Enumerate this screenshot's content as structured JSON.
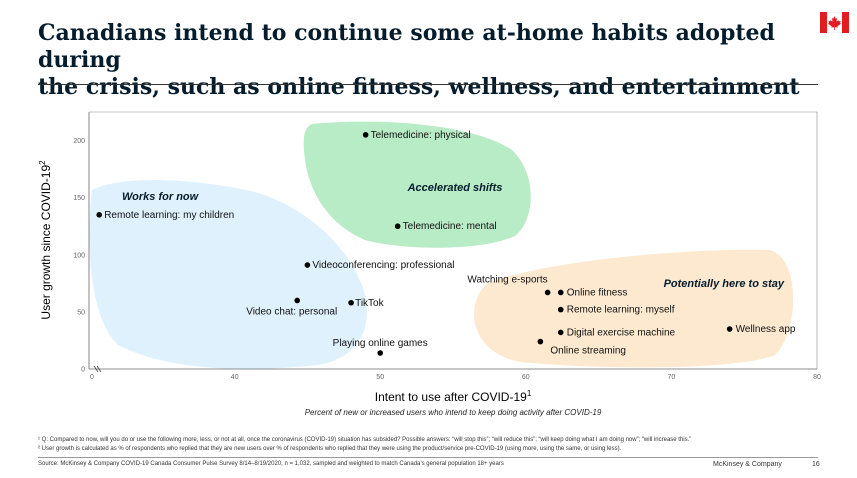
{
  "title": {
    "line1": "Canadians intend to continue some at-home habits adopted during",
    "line2": "the crisis, such as online fitness, wellness, and entertainment"
  },
  "colors": {
    "flag_red": "#e31b23",
    "blue_zone": "#dff1fc",
    "green_zone": "#b8ecc6",
    "orange_zone": "#fde9cf"
  },
  "chart_data": {
    "type": "scatter",
    "xlabel": "Intent to use after COVID-19",
    "xlabel_sup": "1",
    "x_subtitle": "Percent of new or increased users who intend to keep doing activity after COVID-19",
    "ylabel": "User growth since COVID-19",
    "ylabel_sup": "2",
    "xlim": [
      30,
      80
    ],
    "ylim": [
      0,
      225
    ],
    "x_ticks": [
      "0",
      "40",
      "50",
      "60",
      "70",
      "80"
    ],
    "y_ticks": [
      "0",
      "50",
      "100",
      "150",
      "200"
    ],
    "zones": [
      {
        "label": "Works for now",
        "color": "#dff1fc"
      },
      {
        "label": "Accelerated shifts",
        "color": "#b8ecc6"
      },
      {
        "label": "Potentially here to stay",
        "color": "#fde9cf"
      }
    ],
    "points": [
      {
        "label": "Telemedicine: physical",
        "x": 49.0,
        "y": 205
      },
      {
        "label": "Telemedicine: mental",
        "x": 51.2,
        "y": 125
      },
      {
        "label": "Remote learning: my children",
        "x": 30.7,
        "y": 135
      },
      {
        "label": "Videoconferencing: professional",
        "x": 45.0,
        "y": 91
      },
      {
        "label": "Video chat: personal",
        "x": 44.3,
        "y": 60
      },
      {
        "label": "TikTok",
        "x": 48.0,
        "y": 58
      },
      {
        "label": "Playing online games",
        "x": 50.0,
        "y": 14
      },
      {
        "label": "Watching e-sports",
        "x": 61.5,
        "y": 67
      },
      {
        "label": "Online fitness",
        "x": 62.4,
        "y": 67
      },
      {
        "label": "Remote learning: myself",
        "x": 62.4,
        "y": 52
      },
      {
        "label": "Digital exercise machine",
        "x": 62.4,
        "y": 32
      },
      {
        "label": "Online streaming",
        "x": 61.0,
        "y": 24
      },
      {
        "label": "Wellness app",
        "x": 74.0,
        "y": 35
      }
    ]
  },
  "footnotes": {
    "note1": "¹ Q: Compared to now, will you do or use the following more, less, or not at all, once the coronavirus (COVID-19) situation has subsided? Possible answers: “will stop this”; “will reduce this”; “will keep doing what I am doing now”; “will increase this.”",
    "note2": "² User growth is calculated as % of respondents who replied that they are new users over % of respondents who replied that they were using the product/service pre-COVID-19 (using more, using the same, or using less).",
    "source": "Source: McKinsey & Company COVID-19 Canada Consumer Pulse Survey 8/14–8/19/2020, n = 1,032, sampled and weighted to match Canada’s general population 18+ years",
    "brand": "McKinsey & Company",
    "page": "16"
  }
}
